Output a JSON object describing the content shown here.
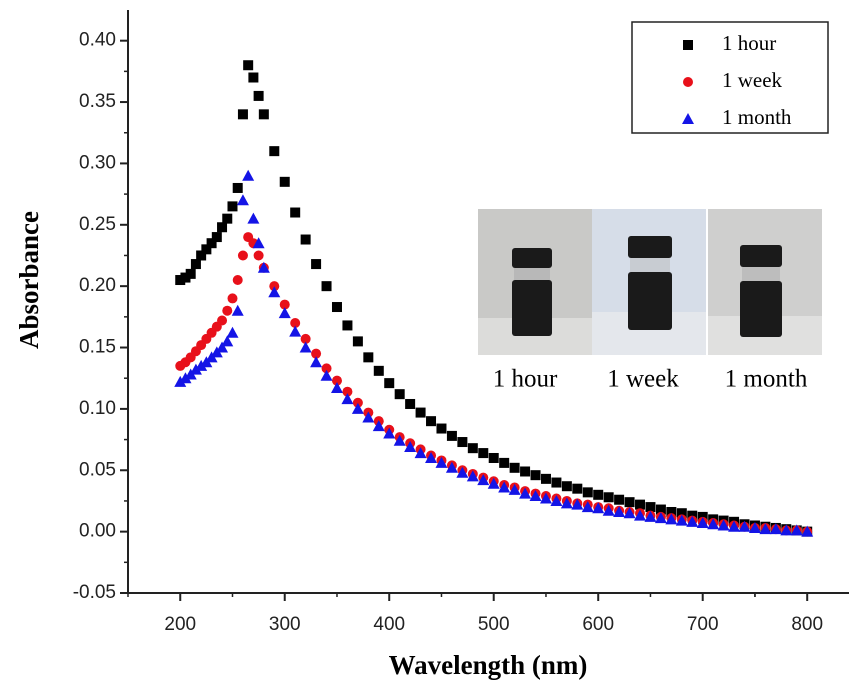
{
  "chart_data": {
    "type": "scatter",
    "xlabel": "Wavelength (nm)",
    "ylabel": "Absorbance",
    "xlim": [
      150,
      840
    ],
    "ylim": [
      -0.05,
      0.425
    ],
    "xticks": [
      200,
      300,
      400,
      500,
      600,
      700,
      800
    ],
    "yticks": [
      -0.05,
      {
        "value": 0,
        "label": "0.00"
      },
      0.05,
      {
        "value": 0.1,
        "label": "0.10"
      },
      0.15,
      {
        "value": 0.2,
        "label": "0.20"
      },
      0.25,
      {
        "value": 0.3,
        "label": "0.30"
      },
      0.35,
      {
        "value": 0.4,
        "label": "0.40"
      }
    ],
    "legend": "upper right",
    "annotations": [
      "1 hour",
      "1 week",
      "1 month"
    ],
    "x": [
      200,
      205,
      210,
      215,
      220,
      225,
      230,
      235,
      240,
      245,
      250,
      255,
      260,
      265,
      270,
      275,
      280,
      290,
      300,
      310,
      320,
      330,
      340,
      350,
      360,
      370,
      380,
      390,
      400,
      410,
      420,
      430,
      440,
      450,
      460,
      470,
      480,
      490,
      500,
      510,
      520,
      530,
      540,
      550,
      560,
      570,
      580,
      590,
      600,
      610,
      620,
      630,
      640,
      650,
      660,
      670,
      680,
      690,
      700,
      710,
      720,
      730,
      740,
      750,
      760,
      770,
      780,
      790,
      800
    ],
    "series": [
      {
        "name": "1 hour",
        "color": "#000000",
        "marker": "square",
        "values": [
          0.205,
          0.207,
          0.21,
          0.218,
          0.225,
          0.23,
          0.235,
          0.24,
          0.248,
          0.255,
          0.265,
          0.28,
          0.34,
          0.38,
          0.37,
          0.355,
          0.34,
          0.31,
          0.285,
          0.26,
          0.238,
          0.218,
          0.2,
          0.183,
          0.168,
          0.155,
          0.142,
          0.131,
          0.121,
          0.112,
          0.104,
          0.097,
          0.09,
          0.084,
          0.078,
          0.073,
          0.068,
          0.064,
          0.06,
          0.056,
          0.052,
          0.049,
          0.046,
          0.043,
          0.04,
          0.037,
          0.035,
          0.032,
          0.03,
          0.028,
          0.026,
          0.024,
          0.022,
          0.02,
          0.018,
          0.016,
          0.015,
          0.013,
          0.012,
          0.01,
          0.009,
          0.008,
          0.006,
          0.005,
          0.004,
          0.003,
          0.002,
          0.001,
          0
        ]
      },
      {
        "name": "1 week",
        "color": "#e8101a",
        "marker": "circle",
        "values": [
          0.135,
          0.138,
          0.142,
          0.147,
          0.152,
          0.157,
          0.162,
          0.167,
          0.172,
          0.18,
          0.19,
          0.205,
          0.225,
          0.24,
          0.235,
          0.225,
          0.215,
          0.2,
          0.185,
          0.17,
          0.157,
          0.145,
          0.133,
          0.123,
          0.114,
          0.105,
          0.097,
          0.09,
          0.083,
          0.077,
          0.072,
          0.067,
          0.062,
          0.058,
          0.054,
          0.05,
          0.047,
          0.044,
          0.041,
          0.038,
          0.036,
          0.033,
          0.031,
          0.029,
          0.027,
          0.025,
          0.023,
          0.022,
          0.02,
          0.019,
          0.017,
          0.016,
          0.015,
          0.013,
          0.012,
          0.011,
          0.01,
          0.009,
          0.008,
          0.007,
          0.006,
          0.005,
          0.004,
          0.003,
          0.003,
          0.002,
          0.001,
          0.001,
          0
        ]
      },
      {
        "name": "1 month",
        "color": "#1414e6",
        "marker": "triangle",
        "values": [
          0.122,
          0.125,
          0.128,
          0.132,
          0.135,
          0.138,
          0.142,
          0.146,
          0.15,
          0.155,
          0.162,
          0.18,
          0.27,
          0.29,
          0.255,
          0.235,
          0.215,
          0.195,
          0.178,
          0.163,
          0.15,
          0.138,
          0.127,
          0.117,
          0.108,
          0.1,
          0.093,
          0.086,
          0.08,
          0.074,
          0.069,
          0.064,
          0.06,
          0.056,
          0.052,
          0.048,
          0.045,
          0.042,
          0.039,
          0.036,
          0.034,
          0.031,
          0.029,
          0.027,
          0.025,
          0.023,
          0.022,
          0.02,
          0.019,
          0.017,
          0.016,
          0.015,
          0.013,
          0.012,
          0.011,
          0.01,
          0.009,
          0.008,
          0.007,
          0.006,
          0.005,
          0.004,
          0.004,
          0.003,
          0.002,
          0.002,
          0.001,
          0.001,
          0
        ]
      }
    ]
  }
}
